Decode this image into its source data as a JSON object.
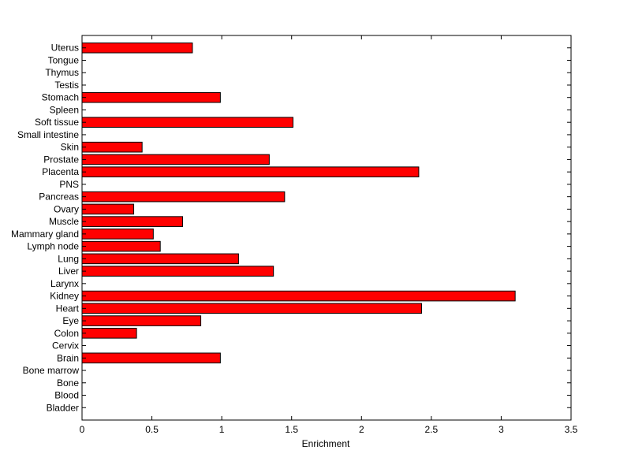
{
  "chart_data": {
    "type": "bar",
    "orientation": "horizontal",
    "categories": [
      "Uterus",
      "Tongue",
      "Thymus",
      "Testis",
      "Stomach",
      "Spleen",
      "Soft tissue",
      "Small intestine",
      "Skin",
      "Prostate",
      "Placenta",
      "PNS",
      "Pancreas",
      "Ovary",
      "Muscle",
      "Mammary gland",
      "Lymph node",
      "Lung",
      "Liver",
      "Larynx",
      "Kidney",
      "Heart",
      "Eye",
      "Colon",
      "Cervix",
      "Brain",
      "Bone marrow",
      "Bone",
      "Blood",
      "Bladder"
    ],
    "values": [
      0.79,
      0,
      0,
      0,
      0.99,
      0,
      1.51,
      0,
      0.43,
      1.34,
      2.41,
      0,
      1.45,
      0.37,
      0.72,
      0.51,
      0.56,
      1.12,
      1.37,
      0,
      3.1,
      2.43,
      0.85,
      0.39,
      0,
      0.99,
      0,
      0,
      0,
      0
    ],
    "title": "",
    "xlabel": "Enrichment",
    "ylabel": "",
    "xlim": [
      0,
      3.5
    ],
    "xticks": [
      "0",
      "0.5",
      "1",
      "1.5",
      "2",
      "2.5",
      "3",
      "3.5"
    ],
    "grid": false,
    "bar_color": "#ff0000",
    "edge_color": "#000000"
  }
}
